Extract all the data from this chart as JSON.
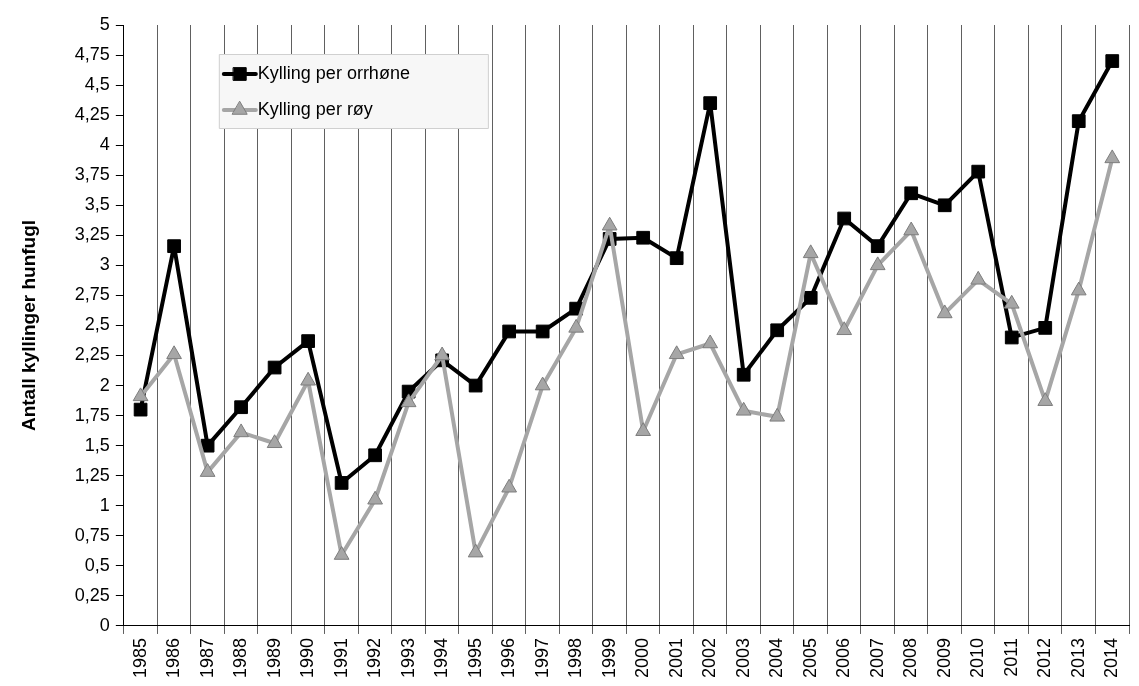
{
  "chart_data": {
    "type": "line",
    "ylabel": "Antall kyllinger hunfugl",
    "categories": [
      "1985",
      "1986",
      "1987",
      "1988",
      "1989",
      "1990",
      "1991",
      "1992",
      "1993",
      "1994",
      "1995",
      "1996",
      "1997",
      "1998",
      "1999",
      "2000",
      "2001",
      "2002",
      "2003",
      "2004",
      "2005",
      "2006",
      "2007",
      "2008",
      "2009",
      "2010",
      "2011",
      "2012",
      "2013",
      "2014"
    ],
    "series": [
      {
        "name": "Kylling per orrhøne",
        "color": "#000000",
        "marker": "square",
        "values": [
          1.8,
          3.16,
          1.5,
          1.82,
          2.15,
          2.37,
          1.19,
          1.42,
          1.95,
          2.21,
          2.0,
          2.45,
          2.45,
          2.64,
          3.22,
          3.23,
          3.06,
          4.35,
          2.09,
          2.46,
          2.73,
          3.39,
          3.16,
          3.6,
          3.5,
          3.78,
          2.4,
          2.48,
          4.2,
          4.7
        ]
      },
      {
        "name": "Kylling per røy",
        "color": "#a6a6a6",
        "marker": "triangle",
        "values": [
          1.91,
          2.26,
          1.28,
          1.61,
          1.52,
          2.04,
          0.59,
          1.05,
          1.86,
          2.25,
          0.61,
          1.15,
          2.0,
          2.48,
          3.33,
          1.62,
          2.26,
          2.35,
          1.79,
          1.74,
          3.1,
          2.46,
          3.0,
          3.29,
          2.6,
          2.88,
          2.68,
          1.87,
          2.79,
          3.89
        ]
      }
    ],
    "ylim": [
      0,
      5
    ],
    "yticks": [
      0,
      {
        "value": 0.25,
        "label": "0,25"
      },
      {
        "value": 0.5,
        "label": "0,5"
      },
      {
        "value": 0.75,
        "label": "0,75"
      },
      1,
      {
        "value": 1.25,
        "label": "1,25"
      },
      {
        "value": 1.5,
        "label": "1,5"
      },
      {
        "value": 1.75,
        "label": "1,75"
      },
      2,
      {
        "value": 2.25,
        "label": "2,25"
      },
      {
        "value": 2.5,
        "label": "2,5"
      },
      {
        "value": 2.75,
        "label": "2,75"
      },
      3,
      {
        "value": 3.25,
        "label": "3,25"
      },
      {
        "value": 3.5,
        "label": "3,5"
      },
      {
        "value": 3.75,
        "label": "3,75"
      },
      4,
      {
        "value": 4.25,
        "label": "4,25"
      },
      {
        "value": 4.5,
        "label": "4,5"
      },
      {
        "value": 4.75,
        "label": "4,75"
      },
      5
    ],
    "grid": "x",
    "legend": "top left",
    "line_style": "solid"
  }
}
